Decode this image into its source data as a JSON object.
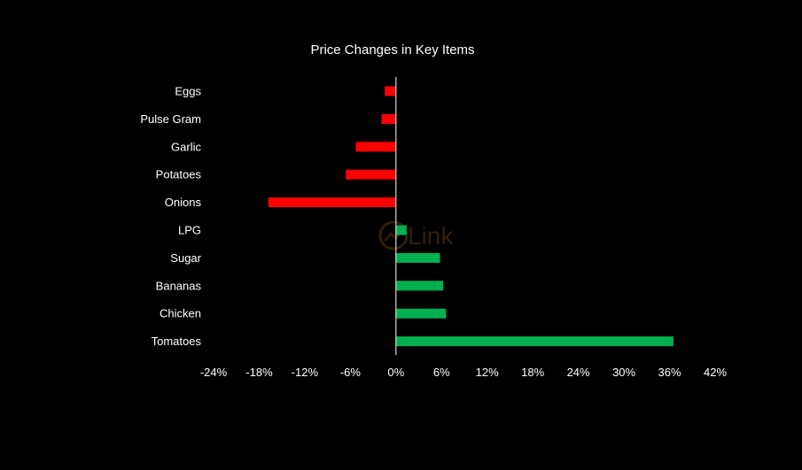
{
  "chart_data": {
    "type": "bar",
    "orientation": "horizontal",
    "title": "Price Changes in Key Items",
    "categories": [
      "Eggs",
      "Pulse Gram",
      "Garlic",
      "Potatoes",
      "Onions",
      "LPG",
      "Sugar",
      "Bananas",
      "Chicken",
      "Tomatoes"
    ],
    "series": [
      {
        "values": [
          -1.5,
          -1.9,
          -5.3,
          -6.6,
          -16.8,
          1.4,
          5.8,
          6.2,
          6.6,
          36.5
        ]
      }
    ],
    "xlim": [
      -24,
      42
    ],
    "x_ticks": [
      -24,
      -18,
      -12,
      -6,
      0,
      6,
      12,
      18,
      24,
      30,
      36,
      42
    ],
    "x_tick_labels": [
      "-24%",
      "-18%",
      "-12%",
      "-6%",
      "0%",
      "6%",
      "12%",
      "18%",
      "24%",
      "30%",
      "36%",
      "42%"
    ],
    "xlabel": "",
    "ylabel": "",
    "grid": false,
    "legend": "none",
    "colors": {
      "positive": "#00B050",
      "negative": "#FF0000",
      "axis": "#FFFFFF",
      "text": "#FFFFFF",
      "background": "#000000"
    },
    "watermark_text": "Link"
  }
}
